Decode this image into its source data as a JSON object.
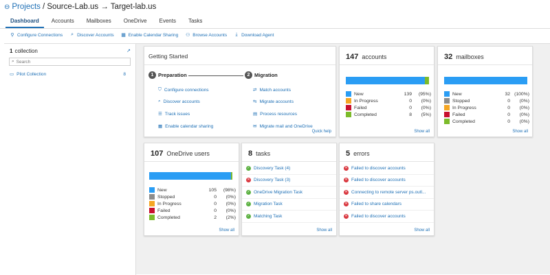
{
  "header": {
    "projects_label": "Projects",
    "path": "/ Source-Lab.us → Target-lab.us"
  },
  "tabs": [
    "Dashboard",
    "Accounts",
    "Mailboxes",
    "OneDrive",
    "Events",
    "Tasks"
  ],
  "toolbar": [
    "Configure Connections",
    "Discover Accounts",
    "Enable Calendar Sharing",
    "Browse Accounts",
    "Download Agent"
  ],
  "sidebar": {
    "count": "1",
    "count_label": "collection",
    "search_placeholder": "Search",
    "collection_name": "Pilot Collection",
    "collection_count": "8"
  },
  "getting_started": {
    "title": "Getting Started",
    "step1_num": "1",
    "step1": "Preparation",
    "step2_num": "2",
    "step2": "Migration",
    "prep_links": [
      "Configure connections",
      "Discover accounts",
      "Track issues",
      "Enable calendar sharing"
    ],
    "mig_links": [
      "Match accounts",
      "Migrate accounts",
      "Process resources",
      "Migrate mail and OneDrive"
    ],
    "quick_help": "Quick help"
  },
  "accounts": {
    "count": "147",
    "label": "accounts",
    "legend": [
      {
        "name": "New",
        "value": "139",
        "pct": "(95%)",
        "color": "#2a9df4"
      },
      {
        "name": "In Progress",
        "value": "0",
        "pct": "(0%)",
        "color": "#f5a623"
      },
      {
        "name": "Failed",
        "value": "0",
        "pct": "(0%)",
        "color": "#c8102e"
      },
      {
        "name": "Completed",
        "value": "8",
        "pct": "(5%)",
        "color": "#7cbb2a"
      }
    ],
    "bar": [
      0.95,
      0.05
    ],
    "show_all": "Show all"
  },
  "mailboxes": {
    "count": "32",
    "label": "mailboxes",
    "legend": [
      {
        "name": "New",
        "value": "32",
        "pct": "(100%)",
        "color": "#2a9df4"
      },
      {
        "name": "Stopped",
        "value": "0",
        "pct": "(0%)",
        "color": "#8c8c8c"
      },
      {
        "name": "In Progress",
        "value": "0",
        "pct": "(0%)",
        "color": "#f5a623"
      },
      {
        "name": "Failed",
        "value": "0",
        "pct": "(0%)",
        "color": "#c8102e"
      },
      {
        "name": "Completed",
        "value": "0",
        "pct": "(0%)",
        "color": "#7cbb2a"
      }
    ],
    "bar": [
      1.0,
      0
    ],
    "show_all": "Show all"
  },
  "onedrive": {
    "count": "107",
    "label": "OneDrive users",
    "legend": [
      {
        "name": "New",
        "value": "105",
        "pct": "(98%)",
        "color": "#2a9df4"
      },
      {
        "name": "Stopped",
        "value": "0",
        "pct": "(0%)",
        "color": "#8c8c8c"
      },
      {
        "name": "In Progress",
        "value": "0",
        "pct": "(0%)",
        "color": "#f5a623"
      },
      {
        "name": "Failed",
        "value": "0",
        "pct": "(0%)",
        "color": "#c8102e"
      },
      {
        "name": "Completed",
        "value": "2",
        "pct": "(2%)",
        "color": "#7cbb2a"
      }
    ],
    "bar": [
      0.98,
      0.02
    ],
    "show_all": "Show all"
  },
  "tasks": {
    "count": "8",
    "label": "tasks",
    "items": [
      {
        "text": "Discovery Task (4)",
        "status": "ok"
      },
      {
        "text": "Discovery Task (3)",
        "status": "err"
      },
      {
        "text": "OneDrive Migration Task",
        "status": "ok"
      },
      {
        "text": "Migration Task",
        "status": "ok"
      },
      {
        "text": "Matching Task",
        "status": "ok"
      }
    ],
    "show_all": "Show all"
  },
  "errors": {
    "count": "5",
    "label": "errors",
    "items": [
      "Failed to discover accounts",
      "Failed to discover accounts",
      "Connecting to remote server ps.outl...",
      "Failed to share calendars",
      "Failed to discover accounts"
    ],
    "show_all": "Show all"
  }
}
